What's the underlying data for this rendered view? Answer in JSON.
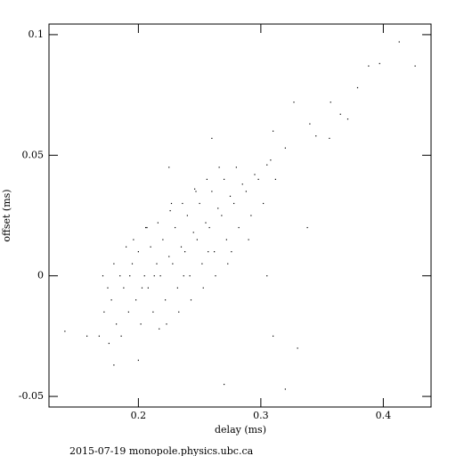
{
  "chart_data": {
    "type": "scatter",
    "xlabel": "delay (ms)",
    "ylabel": "offset (ms)",
    "footer": "2015-07-19 monopole.physics.ubc.ca",
    "color": "#000000",
    "xlim": [
      0.127,
      0.439
    ],
    "xticks": [
      0.2,
      0.3,
      0.4
    ],
    "ylim": [
      -0.0544,
      0.1044
    ],
    "yticks": [
      -0.05,
      0,
      0.05,
      0.1
    ],
    "x": [
      0.413,
      0.426,
      0.397,
      0.388,
      0.379,
      0.371,
      0.365,
      0.357,
      0.34,
      0.345,
      0.327,
      0.31,
      0.26,
      0.32,
      0.356,
      0.338,
      0.305,
      0.31,
      0.33,
      0.32,
      0.27,
      0.14,
      0.158,
      0.18,
      0.2,
      0.225,
      0.172,
      0.168,
      0.175,
      0.171,
      0.182,
      0.178,
      0.185,
      0.18,
      0.176,
      0.192,
      0.188,
      0.195,
      0.19,
      0.186,
      0.193,
      0.202,
      0.198,
      0.205,
      0.2,
      0.196,
      0.203,
      0.207,
      0.212,
      0.208,
      0.215,
      0.21,
      0.206,
      0.213,
      0.217,
      0.222,
      0.218,
      0.225,
      0.22,
      0.216,
      0.223,
      0.227,
      0.232,
      0.228,
      0.235,
      0.23,
      0.226,
      0.233,
      0.237,
      0.242,
      0.238,
      0.245,
      0.24,
      0.236,
      0.243,
      0.247,
      0.252,
      0.248,
      0.255,
      0.25,
      0.246,
      0.253,
      0.257,
      0.262,
      0.258,
      0.265,
      0.26,
      0.256,
      0.263,
      0.272,
      0.268,
      0.275,
      0.27,
      0.266,
      0.273,
      0.282,
      0.278,
      0.285,
      0.28,
      0.276,
      0.292,
      0.288,
      0.295,
      0.29,
      0.302,
      0.298,
      0.305,
      0.312,
      0.308
    ],
    "y": [
      0.097,
      0.087,
      0.088,
      0.087,
      0.078,
      0.065,
      0.067,
      0.072,
      0.063,
      0.058,
      0.072,
      0.06,
      0.057,
      0.053,
      0.057,
      0.02,
      0.0,
      -0.025,
      -0.03,
      -0.047,
      -0.045,
      -0.023,
      -0.025,
      -0.037,
      -0.035,
      0.045,
      -0.015,
      -0.025,
      -0.005,
      0.0,
      -0.02,
      -0.01,
      0.0,
      0.005,
      -0.028,
      -0.015,
      -0.005,
      0.005,
      0.012,
      -0.025,
      0.0,
      -0.02,
      -0.01,
      0.0,
      0.01,
      0.015,
      -0.005,
      0.02,
      -0.015,
      -0.005,
      0.005,
      0.012,
      0.02,
      0.0,
      -0.022,
      -0.01,
      0.0,
      0.008,
      0.015,
      0.022,
      -0.02,
      0.03,
      -0.005,
      0.005,
      0.012,
      0.02,
      0.027,
      -0.015,
      0.0,
      0.0,
      0.01,
      0.018,
      0.025,
      0.03,
      -0.01,
      0.035,
      0.005,
      0.015,
      0.022,
      0.03,
      0.036,
      -0.005,
      0.01,
      0.01,
      0.02,
      0.028,
      0.035,
      0.04,
      0.0,
      0.015,
      0.025,
      0.033,
      0.04,
      0.045,
      0.005,
      0.02,
      0.03,
      0.038,
      0.045,
      0.01,
      0.025,
      0.035,
      0.042,
      0.015,
      0.03,
      0.04,
      0.046,
      0.04,
      0.048
    ]
  }
}
